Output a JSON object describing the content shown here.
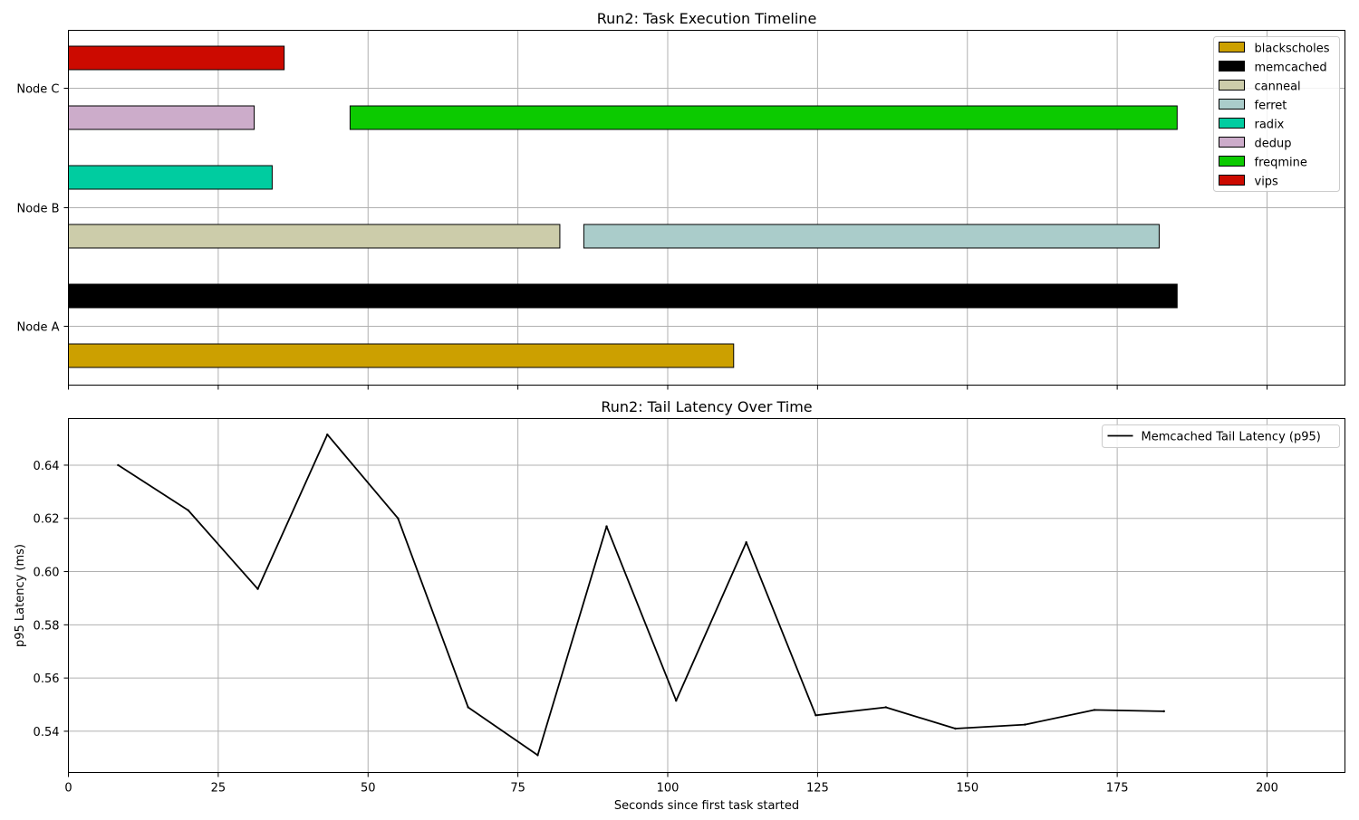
{
  "chart_data": [
    {
      "type": "bar",
      "orientation": "horizontal-gantt",
      "title": "Run2: Task Execution Timeline",
      "xlabel": "",
      "ylabel": "",
      "xlim": [
        0,
        213
      ],
      "xticks": [
        0,
        25,
        50,
        75,
        100,
        125,
        150,
        175,
        200
      ],
      "grid": true,
      "legend_position": "top-right",
      "node_labels": [
        "Node C",
        "Node B",
        "Node A"
      ],
      "series": [
        {
          "name": "blackscholes",
          "color": "#CCA000",
          "node": "Node A",
          "start": 0,
          "end": 111
        },
        {
          "name": "memcached",
          "color": "#000000",
          "node": "Node A",
          "start": 0,
          "end": 185
        },
        {
          "name": "canneal",
          "color": "#CCCCAA",
          "node": "Node B",
          "start": 0,
          "end": 82
        },
        {
          "name": "ferret",
          "color": "#AACCCA",
          "node": "Node B",
          "start": 86,
          "end": 182
        },
        {
          "name": "radix",
          "color": "#00CCA0",
          "node": "Node B",
          "start": 0,
          "end": 34
        },
        {
          "name": "dedup",
          "color": "#CCACCA",
          "node": "Node C",
          "start": 0,
          "end": 31
        },
        {
          "name": "freqmine",
          "color": "#0CCA00",
          "node": "Node C",
          "start": 47,
          "end": 185
        },
        {
          "name": "vips",
          "color": "#CC0A00",
          "node": "Node C",
          "start": 0,
          "end": 36
        }
      ]
    },
    {
      "type": "line",
      "title": "Run2: Tail Latency Over Time",
      "xlabel": "Seconds since first task started",
      "ylabel": "p95 Latency (ms)",
      "xlim": [
        0,
        213
      ],
      "ylim": [
        0.5245,
        0.6575
      ],
      "xticks": [
        0,
        25,
        50,
        75,
        100,
        125,
        150,
        175,
        200
      ],
      "yticks": [
        0.54,
        0.56,
        0.58,
        0.6,
        0.62,
        0.64
      ],
      "ytick_labels": [
        "0.54",
        "0.56",
        "0.58",
        "0.60",
        "0.62",
        "0.64"
      ],
      "grid": true,
      "legend_position": "top-right",
      "series": [
        {
          "name": "Memcached Tail Latency (p95)",
          "color": "#000000",
          "x": [
            8.3,
            20.0,
            31.6,
            43.2,
            55.0,
            66.7,
            78.3,
            89.8,
            101.4,
            113.1,
            124.7,
            136.4,
            148.0,
            159.6,
            171.2,
            182.8
          ],
          "y": [
            0.64,
            0.623,
            0.5935,
            0.6515,
            0.62,
            0.549,
            0.531,
            0.617,
            0.5515,
            0.611,
            0.546,
            0.549,
            0.541,
            0.5425,
            0.548,
            0.5475
          ]
        }
      ]
    }
  ]
}
